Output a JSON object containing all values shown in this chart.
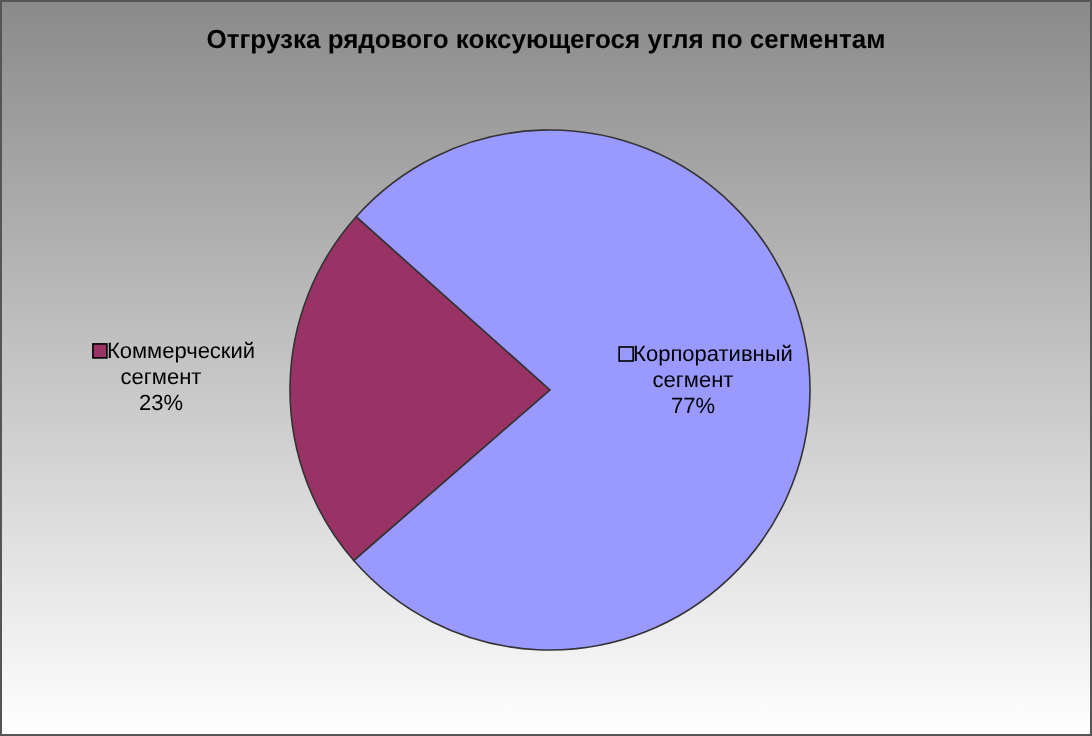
{
  "chart_data": {
    "type": "pie",
    "title": "Отгрузка рядового коксующегося угля по сегментам",
    "categories": [
      "Коммерческий сегмент",
      "Корпоративный сегмент"
    ],
    "values": [
      23,
      77
    ],
    "colors": [
      "#993366",
      "#9999ff"
    ],
    "value_labels": [
      "23%",
      "77%"
    ]
  }
}
